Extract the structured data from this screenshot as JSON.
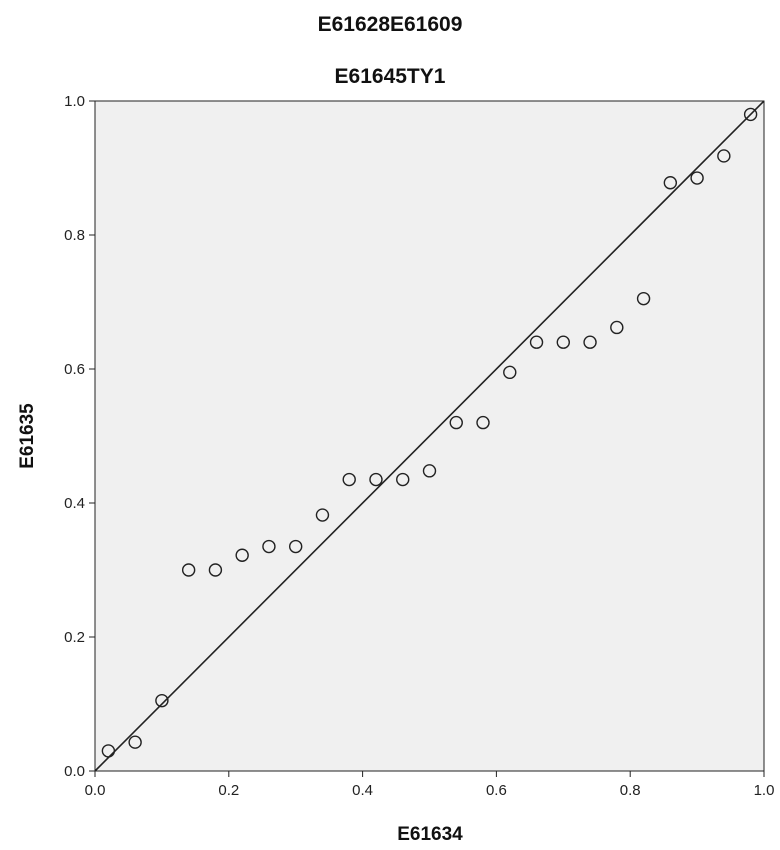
{
  "chart_data": {
    "type": "scatter",
    "title": "E61628E61609",
    "subtitle": "E61645TY1",
    "xlabel": "E61634",
    "ylabel": "E61635",
    "xlim": [
      0.0,
      1.0
    ],
    "ylim": [
      0.0,
      1.0
    ],
    "xticks": [
      "0.0",
      "0.2",
      "0.4",
      "0.6",
      "0.8",
      "1.0"
    ],
    "yticks": [
      "0.0",
      "0.2",
      "0.4",
      "0.6",
      "0.8",
      "1.0"
    ],
    "grid": false,
    "reference_line": {
      "from": [
        0,
        0
      ],
      "to": [
        1,
        1
      ]
    },
    "colors": {
      "plot_background": "#f0f0f0",
      "marker_stroke": "#222222",
      "line": "#222222"
    },
    "points": [
      {
        "x": 0.02,
        "y": 0.03
      },
      {
        "x": 0.06,
        "y": 0.043
      },
      {
        "x": 0.1,
        "y": 0.105
      },
      {
        "x": 0.14,
        "y": 0.3
      },
      {
        "x": 0.18,
        "y": 0.3
      },
      {
        "x": 0.22,
        "y": 0.322
      },
      {
        "x": 0.26,
        "y": 0.335
      },
      {
        "x": 0.3,
        "y": 0.335
      },
      {
        "x": 0.34,
        "y": 0.382
      },
      {
        "x": 0.38,
        "y": 0.435
      },
      {
        "x": 0.42,
        "y": 0.435
      },
      {
        "x": 0.46,
        "y": 0.435
      },
      {
        "x": 0.5,
        "y": 0.448
      },
      {
        "x": 0.54,
        "y": 0.52
      },
      {
        "x": 0.58,
        "y": 0.52
      },
      {
        "x": 0.62,
        "y": 0.595
      },
      {
        "x": 0.66,
        "y": 0.64
      },
      {
        "x": 0.7,
        "y": 0.64
      },
      {
        "x": 0.74,
        "y": 0.64
      },
      {
        "x": 0.78,
        "y": 0.662
      },
      {
        "x": 0.82,
        "y": 0.705
      },
      {
        "x": 0.86,
        "y": 0.878
      },
      {
        "x": 0.9,
        "y": 0.885
      },
      {
        "x": 0.94,
        "y": 0.918
      },
      {
        "x": 0.98,
        "y": 0.98
      }
    ]
  }
}
